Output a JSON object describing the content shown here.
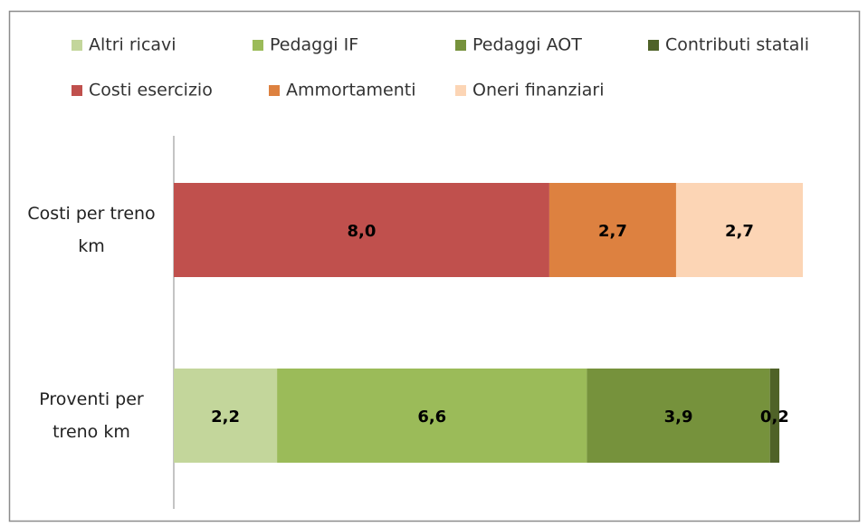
{
  "chart_data": {
    "type": "stacked-bar-horizontal",
    "categories": [
      "Costi per treno km",
      "Proventi per treno km"
    ],
    "series": [
      {
        "name": "Altri ricavi",
        "color": "#c3d69b",
        "values": [
          null,
          2.2
        ],
        "value_labels": [
          null,
          "2,2"
        ]
      },
      {
        "name": "Pedaggi IF",
        "color": "#9bbb59",
        "values": [
          null,
          6.6
        ],
        "value_labels": [
          null,
          "6,6"
        ]
      },
      {
        "name": "Pedaggi AOT",
        "color": "#76923c",
        "values": [
          null,
          3.9
        ],
        "value_labels": [
          null,
          "3,9"
        ]
      },
      {
        "name": "Contributi statali",
        "color": "#4f6228",
        "values": [
          null,
          0.2
        ],
        "value_labels": [
          null,
          "0,2"
        ]
      },
      {
        "name": "Costi esercizio",
        "color": "#c0504d",
        "values": [
          8.0,
          null
        ],
        "value_labels": [
          "8,0",
          null
        ]
      },
      {
        "name": "Ammortamenti",
        "color": "#dd8140",
        "values": [
          2.7,
          null
        ],
        "value_labels": [
          "2,7",
          null
        ]
      },
      {
        "name": "Oneri finanziari",
        "color": "#fcd5b5",
        "values": [
          2.7,
          null
        ],
        "value_labels": [
          "2,7",
          null
        ]
      }
    ]
  }
}
